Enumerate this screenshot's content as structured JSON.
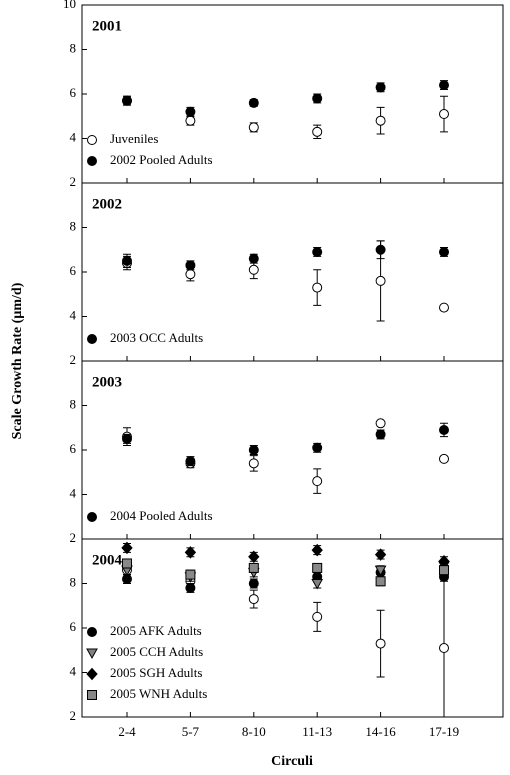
{
  "chart_data": [
    {
      "type": "scatter",
      "title": "2001",
      "ylabel": "Scale Growth Rate (µm/d)",
      "ylim": [
        2,
        10
      ],
      "yticks": [
        2,
        4,
        6,
        8,
        10
      ],
      "legend": "lower left",
      "series": [
        {
          "name": "Juveniles",
          "marker": "circle-open",
          "color": "#ffffff",
          "values": [
            5.7,
            4.8,
            4.5,
            4.3,
            4.8,
            5.1
          ],
          "errors": [
            0.2,
            0.2,
            0.2,
            0.3,
            0.6,
            0.8
          ]
        },
        {
          "name": "2002 Pooled Adults",
          "marker": "circle",
          "color": "#000000",
          "values": [
            5.7,
            5.2,
            5.6,
            5.8,
            6.3,
            6.4
          ],
          "errors": [
            0.2,
            0.2,
            0.15,
            0.2,
            0.2,
            0.2
          ]
        }
      ]
    },
    {
      "type": "scatter",
      "title": "2002",
      "ylim": [
        2,
        10
      ],
      "yticks": [
        2,
        4,
        6,
        8
      ],
      "legend": "lower left",
      "series": [
        {
          "marker": "circle-open",
          "color": "#ffffff",
          "values": [
            6.4,
            5.9,
            6.1,
            5.3,
            5.6,
            4.4
          ],
          "errors": [
            0.3,
            0.3,
            0.4,
            0.8,
            1.8,
            0
          ]
        },
        {
          "name": "2003 OCC Adults",
          "marker": "circle",
          "color": "#000000",
          "values": [
            6.5,
            6.3,
            6.6,
            6.9,
            7.0,
            6.9
          ],
          "errors": [
            0.3,
            0.2,
            0.2,
            0.2,
            0.4,
            0.2
          ]
        }
      ]
    },
    {
      "type": "scatter",
      "title": "2003",
      "ylim": [
        2,
        10
      ],
      "yticks": [
        2,
        4,
        6,
        8
      ],
      "legend": "lower left",
      "series": [
        {
          "marker": "circle-open",
          "color": "#ffffff",
          "values": [
            6.6,
            5.4,
            5.4,
            4.6,
            7.2,
            5.6
          ],
          "errors": [
            0.4,
            0.2,
            0.35,
            0.55,
            0,
            0
          ]
        },
        {
          "name": "2004 Pooled Adults",
          "marker": "circle",
          "color": "#000000",
          "values": [
            6.5,
            5.5,
            6.0,
            6.1,
            6.7,
            6.9
          ],
          "errors": [
            0.2,
            0.2,
            0.2,
            0.2,
            0.2,
            0.3
          ]
        }
      ]
    },
    {
      "type": "scatter",
      "title": "2004",
      "xlabel": "Circuli",
      "categories": [
        "2-4",
        "5-7",
        "8-10",
        "11-13",
        "14-16",
        "17-19"
      ],
      "ylim": [
        2,
        10
      ],
      "yticks": [
        2,
        4,
        6,
        8
      ],
      "legend": "lower left",
      "series": [
        {
          "marker": "circle-open",
          "color": "#ffffff",
          "values": [
            8.6,
            8.1,
            7.3,
            6.5,
            5.3,
            5.1
          ],
          "errors": [
            0.2,
            0.2,
            0.4,
            0.65,
            1.5,
            3.1
          ]
        },
        {
          "name": "2005 AFK Adults",
          "marker": "circle",
          "color": "#000000",
          "values": [
            8.2,
            7.8,
            8.0,
            8.3,
            8.5,
            8.3
          ],
          "errors": [
            0.2,
            0.2,
            0.2,
            0.2,
            0.2,
            0.2
          ]
        },
        {
          "name": "2005 CCH Adults",
          "marker": "triangle-down",
          "color": "#808080",
          "values": [
            8.6,
            8.3,
            8.5,
            8.0,
            8.6,
            8.8
          ],
          "errors": [
            0.2,
            0.2,
            0.2,
            0.2,
            0.2,
            0.2
          ]
        },
        {
          "name": "2005 SGH Adults",
          "marker": "diamond",
          "color": "#000000",
          "values": [
            9.6,
            9.4,
            9.2,
            9.5,
            9.3,
            9.0
          ],
          "errors": [
            0.2,
            0.2,
            0.2,
            0.2,
            0.2,
            0.2
          ]
        },
        {
          "name": "2005 WNH Adults",
          "marker": "square",
          "color": "#888888",
          "values": [
            8.9,
            8.4,
            8.7,
            8.7,
            8.1,
            8.6
          ],
          "errors": [
            0.2,
            0.2,
            0.2,
            0.2,
            0.2,
            0.2
          ]
        }
      ]
    }
  ]
}
